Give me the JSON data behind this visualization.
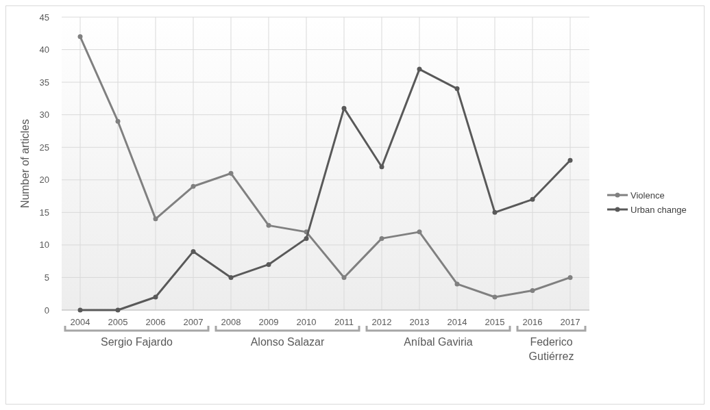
{
  "chart_data": {
    "type": "line",
    "ylabel": "Number of articles",
    "categories": [
      "2004",
      "2005",
      "2006",
      "2007",
      "2008",
      "2009",
      "2010",
      "2011",
      "2012",
      "2013",
      "2014",
      "2015",
      "2016",
      "2017"
    ],
    "series": [
      {
        "name": "Violence",
        "color": "#808080",
        "values": [
          42,
          29,
          14,
          19,
          21,
          13,
          12,
          5,
          11,
          12,
          4,
          2,
          3,
          5
        ]
      },
      {
        "name": "Urban change",
        "color": "#595959",
        "values": [
          0,
          0,
          2,
          9,
          5,
          7,
          11,
          31,
          22,
          37,
          34,
          15,
          17,
          23
        ]
      }
    ],
    "ylim": [
      0,
      45
    ],
    "yticks": [
      0,
      5,
      10,
      15,
      20,
      25,
      30,
      35,
      40,
      45
    ],
    "grid": true,
    "legend": "right",
    "marker": "circle",
    "line_style": "solid",
    "annotations": [
      "Sergio Fajardo",
      "Alonso Salazar",
      "Aníbal Gaviria",
      "Federico\nGutiérrez"
    ]
  }
}
